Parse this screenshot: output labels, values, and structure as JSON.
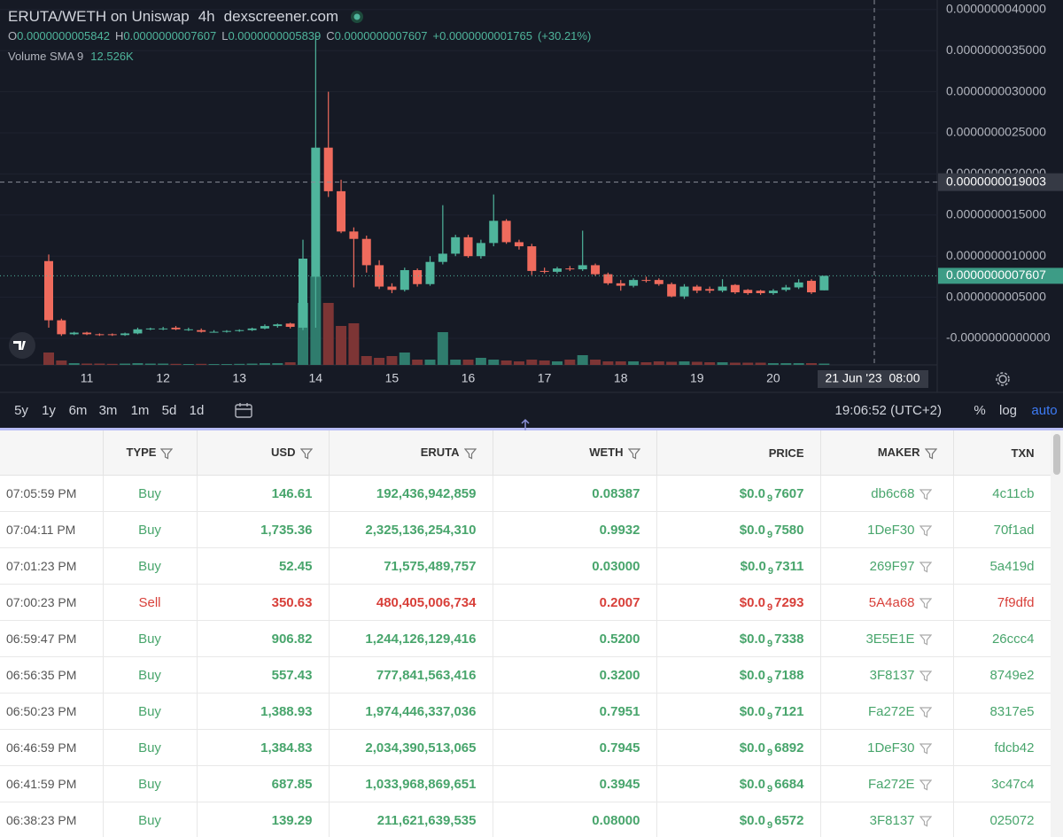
{
  "header": {
    "title": "ERUTA/WETH on Uniswap",
    "interval": "4h",
    "source": "dexscreener.com",
    "ohlc": [
      [
        "O",
        "0.0000000005842"
      ],
      [
        "H",
        "0.0000000007607"
      ],
      [
        "L",
        "0.0000000005839"
      ],
      [
        "C",
        "0.0000000007607"
      ]
    ],
    "change": "+0.0000000001765",
    "change_pct": "(+30.21%)",
    "volume_label": "Volume SMA 9",
    "volume_value": "12.526K"
  },
  "chart_data": {
    "type": "candlestick",
    "up_color": "#4fb59c",
    "down_color": "#ef6b5d",
    "up_volume_color": "#2f7c6d",
    "down_volume_color": "#7d3535",
    "grid": true,
    "ylim": [
      -3.23e-10,
      4.116e-09
    ],
    "yticks": [
      {
        "value": 4e-09,
        "label": "0.0000000040000"
      },
      {
        "value": 3.5e-09,
        "label": "0.0000000035000"
      },
      {
        "value": 3e-09,
        "label": "0.0000000030000"
      },
      {
        "value": 2.5e-09,
        "label": "0.0000000025000"
      },
      {
        "value": 2e-09,
        "label": "0.0000000020000"
      },
      {
        "value": 1.5e-09,
        "label": "0.0000000015000"
      },
      {
        "value": 1e-09,
        "label": "0.0000000010000"
      },
      {
        "value": 5e-10,
        "label": "0.0000000005000"
      },
      {
        "value": 0,
        "label": "-0.0000000000000"
      }
    ],
    "xtick_labels": [
      "11",
      "12",
      "13",
      "14",
      "15",
      "16",
      "17",
      "18",
      "19",
      "20"
    ],
    "last_price": {
      "value": 7.607e-10,
      "label": "0.0000000007607"
    },
    "crosshair": {
      "price": {
        "value": 1.9003e-09,
        "label": "0.0000000019003"
      },
      "time": "21 Jun '23  08:00"
    },
    "candles": [
      [
        9.4e-10,
        1.02e-09,
        1.3e-10,
        2.2e-10,
        14000
      ],
      [
        2.2e-10,
        2.4e-10,
        3e-11,
        5e-11,
        5000
      ],
      [
        5e-11,
        8e-11,
        4e-11,
        7e-11,
        2000
      ],
      [
        7e-11,
        8e-11,
        4e-11,
        5e-11,
        1500
      ],
      [
        5e-11,
        6e-11,
        3e-11,
        4e-11,
        1500
      ],
      [
        5e-11,
        6e-11,
        3e-11,
        4e-11,
        1200
      ],
      [
        4e-11,
        7e-11,
        3e-11,
        6e-11,
        1500
      ],
      [
        6e-11,
        1.3e-10,
        5e-11,
        1.1e-10,
        2000
      ],
      [
        1.1e-10,
        1.3e-10,
        1e-10,
        1.2e-10,
        1500
      ],
      [
        1.2e-10,
        1.4e-10,
        1e-10,
        1.2e-10,
        1500
      ],
      [
        1.3e-10,
        1.5e-10,
        1e-10,
        1.1e-10,
        1200
      ],
      [
        1.1e-10,
        1.3e-10,
        9e-11,
        1.1e-10,
        1000
      ],
      [
        1e-10,
        1.2e-10,
        7e-11,
        8e-11,
        1200
      ],
      [
        8e-11,
        1e-10,
        7e-11,
        8e-11,
        1000
      ],
      [
        8e-11,
        1e-10,
        7e-11,
        9e-11,
        1000
      ],
      [
        9e-11,
        1.1e-10,
        8e-11,
        1e-10,
        1200
      ],
      [
        1e-10,
        1.3e-10,
        9e-11,
        1.2e-10,
        1500
      ],
      [
        1.2e-10,
        1.7e-10,
        1.1e-10,
        1.5e-10,
        2000
      ],
      [
        1.5e-10,
        1.8e-10,
        1.3e-10,
        1.7e-10,
        2000
      ],
      [
        1.8e-10,
        1.9e-10,
        1.2e-10,
        1.4e-10,
        3000
      ],
      [
        1.3e-10,
        1.2e-09,
        1e-10,
        9.7e-10,
        70000
      ],
      [
        7.5e-10,
        3.69e-09,
        1.3e-10,
        2.32e-09,
        100000
      ],
      [
        2.32e-09,
        3e-09,
        1.72e-09,
        1.79e-09,
        70000
      ],
      [
        1.79e-09,
        1.93e-09,
        1.28e-09,
        1.3e-09,
        44000
      ],
      [
        1.3e-09,
        1.35e-09,
        6.2e-10,
        1.21e-09,
        47000
      ],
      [
        1.21e-09,
        1.25e-09,
        8e-10,
        8.9e-10,
        10000
      ],
      [
        8.9e-10,
        9.5e-10,
        6e-10,
        6.3e-10,
        8000
      ],
      [
        6.3e-10,
        6.7e-10,
        5.5e-10,
        5.9e-10,
        10000
      ],
      [
        5.9e-10,
        8.6e-10,
        5.7e-10,
        8.3e-10,
        14000
      ],
      [
        8.3e-10,
        8.5e-10,
        6.3e-10,
        6.6e-10,
        6000
      ],
      [
        6.6e-10,
        1e-09,
        6.4e-10,
        9.3e-10,
        6000
      ],
      [
        9.3e-10,
        1.62e-09,
        9e-10,
        1.03e-09,
        37000
      ],
      [
        1.03e-09,
        1.26e-09,
        1e-09,
        1.23e-09,
        6000
      ],
      [
        1.23e-09,
        1.26e-09,
        9.8e-10,
        1e-09,
        6000
      ],
      [
        1e-09,
        1.2e-09,
        9.7e-10,
        1.16e-09,
        8000
      ],
      [
        1.16e-09,
        1.75e-09,
        1.12e-09,
        1.43e-09,
        6000
      ],
      [
        1.43e-09,
        1.45e-09,
        1.15e-09,
        1.17e-09,
        5000
      ],
      [
        1.17e-09,
        1.2e-09,
        1.08e-09,
        1.12e-09,
        4000
      ],
      [
        1.12e-09,
        1.15e-09,
        7.7e-10,
        8.2e-10,
        6000
      ],
      [
        8.2e-10,
        8.6e-10,
        7.9e-10,
        8.1e-10,
        5000
      ],
      [
        8.1e-10,
        8.7e-10,
        7.9e-10,
        8.5e-10,
        4000
      ],
      [
        8.5e-10,
        8.8e-10,
        8.2e-10,
        8.4e-10,
        6000
      ],
      [
        8.4e-10,
        1.31e-09,
        8.2e-10,
        8.9e-10,
        11000
      ],
      [
        8.9e-10,
        9.1e-10,
        7.6e-10,
        7.8e-10,
        6000
      ],
      [
        7.8e-10,
        8e-10,
        6.5e-10,
        6.7e-10,
        4000
      ],
      [
        6.7e-10,
        7.1e-10,
        5.8e-10,
        6.4e-10,
        4000
      ],
      [
        6.4e-10,
        7.3e-10,
        6.2e-10,
        7.1e-10,
        4000
      ],
      [
        7.1e-10,
        7.5e-10,
        6.8e-10,
        7e-10,
        3000
      ],
      [
        7.1e-10,
        7.3e-10,
        6.4e-10,
        6.6e-10,
        4000
      ],
      [
        6.6e-10,
        6.8e-10,
        5e-10,
        5.1e-10,
        3500
      ],
      [
        5.1e-10,
        6.6e-10,
        4.8e-10,
        6.3e-10,
        4000
      ],
      [
        6.3e-10,
        6.5e-10,
        5.5e-10,
        5.8e-10,
        3500
      ],
      [
        6e-10,
        6.3e-10,
        5.5e-10,
        5.8e-10,
        3000
      ],
      [
        5.8e-10,
        7.2e-10,
        5.6e-10,
        6.3e-10,
        3000
      ],
      [
        6.5e-10,
        6.6e-10,
        5.4e-10,
        5.6e-10,
        2500
      ],
      [
        5.9e-10,
        6e-10,
        5.3e-10,
        5.5e-10,
        2500
      ],
      [
        5.8e-10,
        5.9e-10,
        5.3e-10,
        5.5e-10,
        2500
      ],
      [
        5.5e-10,
        6e-10,
        5.3e-10,
        5.8e-10,
        2000
      ],
      [
        5.9e-10,
        6.5e-10,
        5.7e-10,
        6.2e-10,
        2000
      ],
      [
        6.2e-10,
        7.2e-10,
        6e-10,
        6.8e-10,
        2000
      ],
      [
        7e-10,
        7.2e-10,
        5.4e-10,
        5.6e-10,
        2000
      ],
      [
        5.842e-10,
        7.607e-10,
        5.839e-10,
        7.607e-10,
        1500
      ]
    ]
  },
  "toolbar": {
    "ranges": [
      "5y",
      "1y",
      "6m",
      "3m",
      "1m",
      "5d",
      "1d"
    ],
    "clock": "19:06:52 (UTC+2)",
    "options": [
      "%",
      "log",
      "auto"
    ]
  },
  "table": {
    "columns": [
      "TYPE",
      "USD",
      "ERUTA",
      "WETH",
      "PRICE",
      "MAKER",
      "TXN"
    ],
    "rows": [
      [
        "07:05:59 PM",
        "Buy",
        "146.61",
        "192,436,942,859",
        "0.08387",
        [
          "$0.0",
          "9",
          "7607"
        ],
        "db6c68",
        "4c11cb"
      ],
      [
        "07:04:11 PM",
        "Buy",
        "1,735.36",
        "2,325,136,254,310",
        "0.9932",
        [
          "$0.0",
          "9",
          "7580"
        ],
        "1DeF30",
        "70f1ad"
      ],
      [
        "07:01:23 PM",
        "Buy",
        "52.45",
        "71,575,489,757",
        "0.03000",
        [
          "$0.0",
          "9",
          "7311"
        ],
        "269F97",
        "5a419d"
      ],
      [
        "07:00:23 PM",
        "Sell",
        "350.63",
        "480,405,006,734",
        "0.2007",
        [
          "$0.0",
          "9",
          "7293"
        ],
        "5A4a68",
        "7f9dfd"
      ],
      [
        "06:59:47 PM",
        "Buy",
        "906.82",
        "1,244,126,129,416",
        "0.5200",
        [
          "$0.0",
          "9",
          "7338"
        ],
        "3E5E1E",
        "26ccc4"
      ],
      [
        "06:56:35 PM",
        "Buy",
        "557.43",
        "777,841,563,416",
        "0.3200",
        [
          "$0.0",
          "9",
          "7188"
        ],
        "3F8137",
        "8749e2"
      ],
      [
        "06:50:23 PM",
        "Buy",
        "1,388.93",
        "1,974,446,337,036",
        "0.7951",
        [
          "$0.0",
          "9",
          "7121"
        ],
        "Fa272E",
        "8317e5"
      ],
      [
        "06:46:59 PM",
        "Buy",
        "1,384.83",
        "2,034,390,513,065",
        "0.7945",
        [
          "$0.0",
          "9",
          "6892"
        ],
        "1DeF30",
        "fdcb42"
      ],
      [
        "06:41:59 PM",
        "Buy",
        "687.85",
        "1,033,968,869,651",
        "0.3945",
        [
          "$0.0",
          "9",
          "6684"
        ],
        "Fa272E",
        "3c47c4"
      ],
      [
        "06:38:23 PM",
        "Buy",
        "139.29",
        "211,621,639,535",
        "0.08000",
        [
          "$0.0",
          "9",
          "6572"
        ],
        "3F8137",
        "025072"
      ]
    ]
  }
}
